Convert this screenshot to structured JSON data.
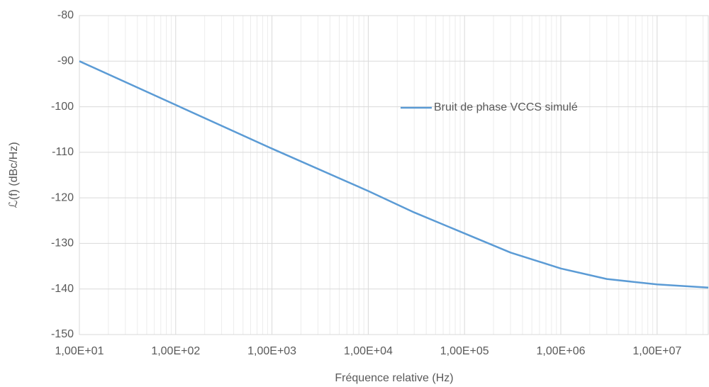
{
  "chart_data": {
    "type": "line",
    "x_label": "Fréquence relative (Hz)",
    "y_label": "ℒ(f) (dBc/Hz)",
    "x": [
      10,
      100,
      1000,
      10000,
      30000,
      100000,
      300000,
      1000000,
      3000000,
      10000000,
      34000000
    ],
    "series": [
      {
        "name": "Bruit de phase VCCS simulé",
        "color": "#5b9bd5",
        "values": [
          -90,
          -99.6,
          -109.2,
          -118.5,
          -123.2,
          -127.8,
          -132,
          -135.5,
          -137.8,
          -139,
          -139.7
        ]
      }
    ],
    "xscale": "log",
    "xlim": [
      10,
      34000000
    ],
    "xticks": [
      {
        "value": 10,
        "label": "1,00E+01"
      },
      {
        "value": 100,
        "label": "1,00E+02"
      },
      {
        "value": 1000,
        "label": "1,00E+03"
      },
      {
        "value": 10000,
        "label": "1,00E+04"
      },
      {
        "value": 100000,
        "label": "1,00E+05"
      },
      {
        "value": 1000000,
        "label": "1,00E+06"
      },
      {
        "value": 10000000,
        "label": "1,00E+07"
      }
    ],
    "ylim": [
      -150,
      -80
    ],
    "yticks": [
      -150,
      -140,
      -130,
      -120,
      -110,
      -100,
      -90,
      -80
    ],
    "grid": true,
    "minor_grid": true,
    "legend": "upper right"
  }
}
